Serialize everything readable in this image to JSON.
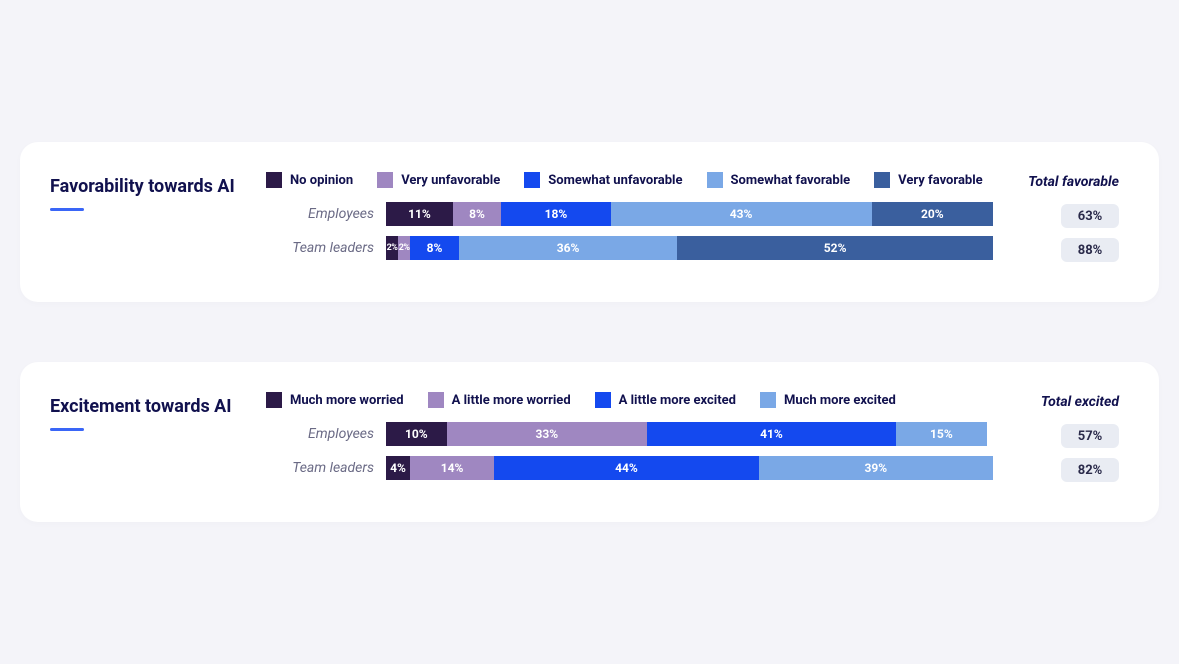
{
  "page": {
    "background_color": "#f4f4f9",
    "card_background": "#ffffff"
  },
  "charts": [
    {
      "id": "favorability",
      "title": "Favorability towards AI",
      "underline_color": "#3a66f7",
      "type": "stacked-bar-horizontal",
      "legend": [
        {
          "label": "No opinion",
          "color": "#2c1a47"
        },
        {
          "label": "Very unfavorable",
          "color": "#9f87c1"
        },
        {
          "label": "Somewhat unfavorable",
          "color": "#1449ef"
        },
        {
          "label": "Somewhat favorable",
          "color": "#7aa8e6"
        },
        {
          "label": "Very favorable",
          "color": "#3a5f9e"
        }
      ],
      "total_label": "Total favorable",
      "total_pill_bg": "#e9ecf3",
      "total_pill_text": "#2a2a4a",
      "rows": [
        {
          "label": "Employees",
          "segments": [
            {
              "value": 11,
              "text": "11%",
              "color": "#2c1a47"
            },
            {
              "value": 8,
              "text": "8%",
              "color": "#9f87c1"
            },
            {
              "value": 18,
              "text": "18%",
              "color": "#1449ef"
            },
            {
              "value": 43,
              "text": "43%",
              "color": "#7aa8e6"
            },
            {
              "value": 20,
              "text": "20%",
              "color": "#3a5f9e"
            }
          ],
          "total": "63%"
        },
        {
          "label": "Team leaders",
          "segments": [
            {
              "value": 2,
              "text": "2%",
              "color": "#2c1a47"
            },
            {
              "value": 2,
              "text": "2%",
              "color": "#9f87c1"
            },
            {
              "value": 8,
              "text": "8%",
              "color": "#1449ef"
            },
            {
              "value": 36,
              "text": "36%",
              "color": "#7aa8e6"
            },
            {
              "value": 52,
              "text": "52%",
              "color": "#3a5f9e"
            }
          ],
          "total": "88%"
        }
      ]
    },
    {
      "id": "excitement",
      "title": "Excitement towards AI",
      "underline_color": "#3a66f7",
      "type": "stacked-bar-horizontal",
      "legend": [
        {
          "label": "Much more worried",
          "color": "#2c1a47"
        },
        {
          "label": "A little more worried",
          "color": "#9f87c1"
        },
        {
          "label": "A little more excited",
          "color": "#1449ef"
        },
        {
          "label": "Much more excited",
          "color": "#7aa8e6"
        }
      ],
      "total_label": "Total excited",
      "total_pill_bg": "#e9ecf3",
      "total_pill_text": "#2a2a4a",
      "rows": [
        {
          "label": "Employees",
          "segments": [
            {
              "value": 10,
              "text": "10%",
              "color": "#2c1a47"
            },
            {
              "value": 33,
              "text": "33%",
              "color": "#9f87c1"
            },
            {
              "value": 41,
              "text": "41%",
              "color": "#1449ef"
            },
            {
              "value": 15,
              "text": "15%",
              "color": "#7aa8e6"
            }
          ],
          "total": "57%"
        },
        {
          "label": "Team leaders",
          "segments": [
            {
              "value": 4,
              "text": "4%",
              "color": "#2c1a47"
            },
            {
              "value": 14,
              "text": "14%",
              "color": "#9f87c1"
            },
            {
              "value": 44,
              "text": "44%",
              "color": "#1449ef"
            },
            {
              "value": 39,
              "text": "39%",
              "color": "#7aa8e6"
            }
          ],
          "total": "82%"
        }
      ]
    }
  ]
}
